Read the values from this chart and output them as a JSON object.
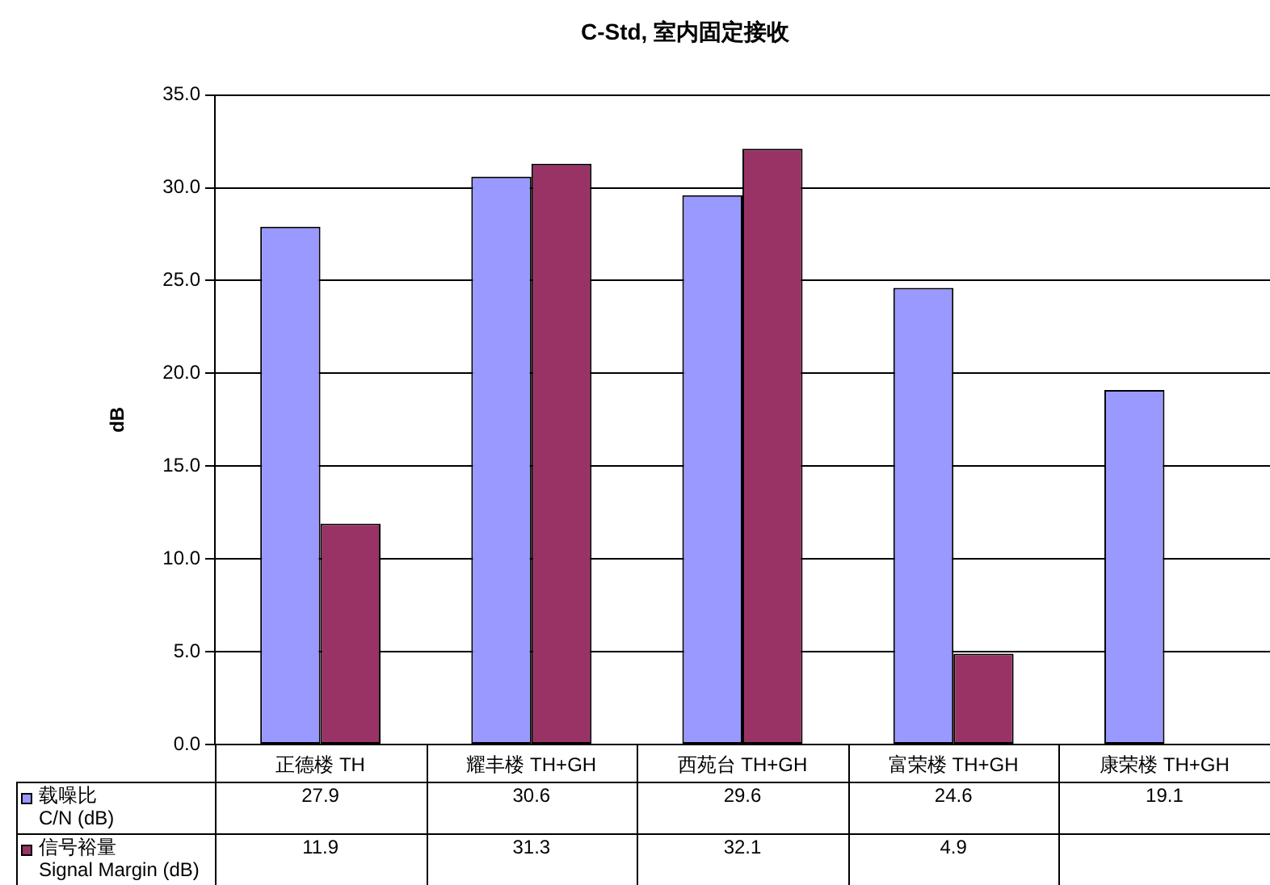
{
  "chart_data": {
    "type": "bar",
    "title": "C-Std, 室内固定接收",
    "ylabel": "dB",
    "categories": [
      "正德楼 TH",
      "耀丰楼 TH+GH",
      "西苑台 TH+GH",
      "富荣楼 TH+GH",
      "康荣楼 TH+GH"
    ],
    "series": [
      {
        "name": "载噪比\nC/N (dB)",
        "color": "#9999ff",
        "values": [
          27.9,
          30.6,
          29.6,
          24.6,
          19.1
        ]
      },
      {
        "name": "信号裕量\nSignal Margin (dB)",
        "color": "#993366",
        "values": [
          11.9,
          31.3,
          32.1,
          4.9,
          null
        ]
      }
    ],
    "ylim": [
      0,
      35
    ],
    "yticks": [
      {
        "value": 0,
        "label": "0.0"
      },
      {
        "value": 5,
        "label": "5.0"
      },
      {
        "value": 10,
        "label": "10.0"
      },
      {
        "value": 15,
        "label": "15.0"
      },
      {
        "value": 20,
        "label": "20.0"
      },
      {
        "value": 25,
        "label": "25.0"
      },
      {
        "value": 30,
        "label": "30.0"
      },
      {
        "value": 35,
        "label": "35.0"
      }
    ],
    "grid": "y",
    "legend": "bottom",
    "data_labels": true
  }
}
